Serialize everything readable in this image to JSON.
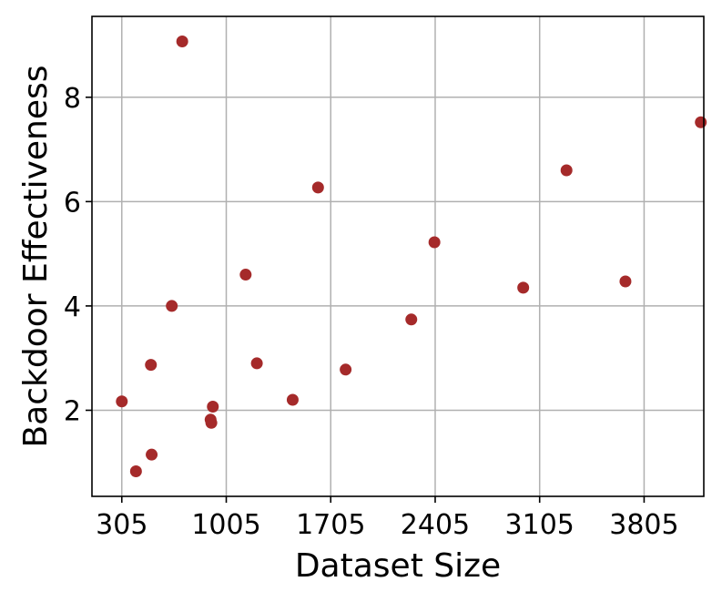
{
  "chart_data": {
    "type": "scatter",
    "title": "",
    "xlabel": "Dataset Size",
    "ylabel": "Backdoor Effectiveness",
    "xlim": [
      105,
      4205
    ],
    "ylim": [
      0.35,
      9.55
    ],
    "xticks": [
      305,
      1005,
      1705,
      2405,
      3105,
      3805
    ],
    "yticks": [
      2,
      4,
      6,
      8
    ],
    "grid": true,
    "legend": "none",
    "marker_color": "#a52a2a",
    "points": [
      {
        "x": 305,
        "y": 2.17
      },
      {
        "x": 400,
        "y": 0.83
      },
      {
        "x": 500,
        "y": 2.87
      },
      {
        "x": 505,
        "y": 1.15
      },
      {
        "x": 640,
        "y": 4.0
      },
      {
        "x": 710,
        "y": 9.07
      },
      {
        "x": 900,
        "y": 1.82
      },
      {
        "x": 905,
        "y": 1.76
      },
      {
        "x": 915,
        "y": 2.07
      },
      {
        "x": 1135,
        "y": 4.6
      },
      {
        "x": 1210,
        "y": 2.9
      },
      {
        "x": 1450,
        "y": 2.2
      },
      {
        "x": 1620,
        "y": 6.27
      },
      {
        "x": 1805,
        "y": 2.78
      },
      {
        "x": 2245,
        "y": 3.74
      },
      {
        "x": 2400,
        "y": 5.22
      },
      {
        "x": 2995,
        "y": 4.35
      },
      {
        "x": 3285,
        "y": 6.6
      },
      {
        "x": 3680,
        "y": 4.47
      },
      {
        "x": 4185,
        "y": 7.52
      }
    ]
  }
}
